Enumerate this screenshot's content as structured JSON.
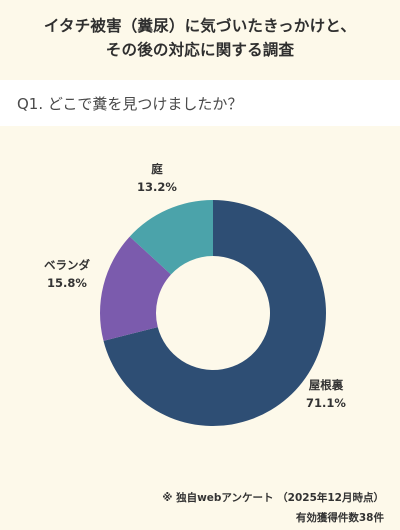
{
  "title": {
    "line1": "イタチ被害（糞尿）に気づいたきっかけと、",
    "line2": "その後の対応に関する調査"
  },
  "question": "Q1. どこで糞を見つけましたか？",
  "footnote": "※ 独自webアンケート （2025年12月時点）",
  "sample_size": "有効獲得件数38件",
  "colors": {
    "background": "#fdf9ea",
    "question_bar": "#ffffff"
  },
  "chart_data": {
    "type": "pie",
    "donut": true,
    "labels": [
      "屋根裏",
      "ベランダ",
      "庭"
    ],
    "values": [
      71.1,
      15.8,
      13.2
    ],
    "value_labels": [
      "71.1%",
      "15.8%",
      "13.2%"
    ],
    "colors": [
      "#2e4e74",
      "#7b5bad",
      "#4ba3aa"
    ],
    "start": "top",
    "direction": "clockwise",
    "legend": "none"
  }
}
